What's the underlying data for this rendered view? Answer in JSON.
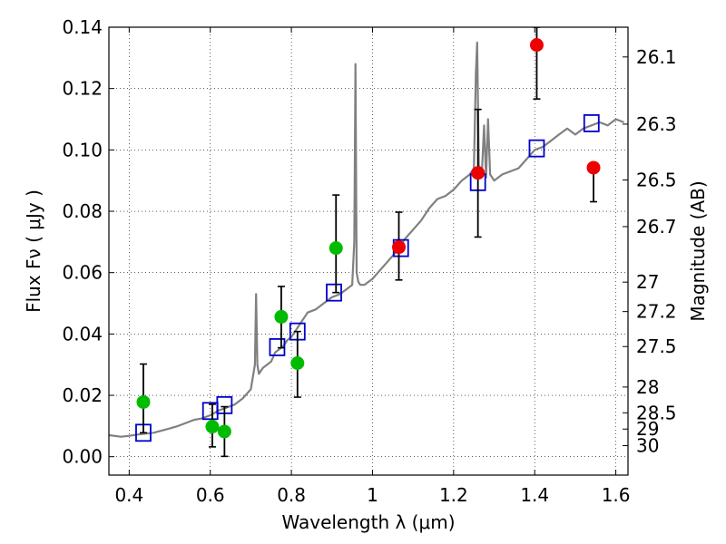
{
  "chart_data": {
    "type": "scatter",
    "title": "",
    "xlabel": "Wavelength  λ (μm)",
    "ylabel": "Flux  Fν  ( μJy )",
    "y2label": "Magnitude (AB)",
    "xlim": [
      0.35,
      1.63
    ],
    "ylim": [
      -0.006,
      0.14
    ],
    "grid": true,
    "grid_style": "dotted",
    "x_ticks": [
      {
        "value": 0.4,
        "label": "0.4"
      },
      {
        "value": 0.6,
        "label": "0.6"
      },
      {
        "value": 0.8,
        "label": "0.8"
      },
      {
        "value": 1.0,
        "label": "1"
      },
      {
        "value": 1.2,
        "label": "1.2"
      },
      {
        "value": 1.4,
        "label": "1.4"
      },
      {
        "value": 1.6,
        "label": "1.6"
      }
    ],
    "y_ticks": [
      {
        "value": 0.0,
        "label": "0.00"
      },
      {
        "value": 0.02,
        "label": "0.02"
      },
      {
        "value": 0.04,
        "label": "0.04"
      },
      {
        "value": 0.06,
        "label": "0.06"
      },
      {
        "value": 0.08,
        "label": "0.08"
      },
      {
        "value": 0.1,
        "label": "0.10"
      },
      {
        "value": 0.12,
        "label": "0.12"
      },
      {
        "value": 0.14,
        "label": "0.14"
      }
    ],
    "y2_ticks": [
      {
        "label": "26.1",
        "flux": 0.1303
      },
      {
        "label": "26.3",
        "flux": 0.1084
      },
      {
        "label": "26.5",
        "flux": 0.0902
      },
      {
        "label": "26.7",
        "flux": 0.075
      },
      {
        "label": "27",
        "flux": 0.0569
      },
      {
        "label": "27.2",
        "flux": 0.0473
      },
      {
        "label": "27.5",
        "flux": 0.0359
      },
      {
        "label": "28",
        "flux": 0.0227
      },
      {
        "label": "28.5",
        "flux": 0.0143
      },
      {
        "label": "29",
        "flux": 0.009
      },
      {
        "label": "30",
        "flux": 0.0036
      }
    ],
    "series": [
      {
        "type": "line",
        "color": "#808080",
        "x": [
          0.35,
          0.38,
          0.4,
          0.42,
          0.44,
          0.46,
          0.48,
          0.5,
          0.52,
          0.54,
          0.56,
          0.58,
          0.6,
          0.62,
          0.64,
          0.66,
          0.68,
          0.7,
          0.71,
          0.713,
          0.716,
          0.72,
          0.73,
          0.74,
          0.75,
          0.76,
          0.77,
          0.78,
          0.79,
          0.8,
          0.82,
          0.84,
          0.86,
          0.88,
          0.9,
          0.92,
          0.94,
          0.95,
          0.955,
          0.958,
          0.961,
          0.965,
          0.97,
          0.98,
          1.0,
          1.02,
          1.04,
          1.06,
          1.08,
          1.1,
          1.12,
          1.14,
          1.16,
          1.18,
          1.2,
          1.22,
          1.24,
          1.25,
          1.255,
          1.258,
          1.262,
          1.27,
          1.275,
          1.28,
          1.285,
          1.29,
          1.3,
          1.32,
          1.34,
          1.36,
          1.38,
          1.4,
          1.42,
          1.44,
          1.46,
          1.48,
          1.5,
          1.52,
          1.54,
          1.56,
          1.58,
          1.6,
          1.62
        ],
        "y": [
          0.007,
          0.0065,
          0.0068,
          0.0072,
          0.0075,
          0.0078,
          0.0085,
          0.0092,
          0.01,
          0.011,
          0.012,
          0.0125,
          0.0135,
          0.015,
          0.016,
          0.017,
          0.019,
          0.022,
          0.03,
          0.053,
          0.03,
          0.027,
          0.029,
          0.03,
          0.031,
          0.034,
          0.035,
          0.036,
          0.038,
          0.039,
          0.043,
          0.047,
          0.048,
          0.05,
          0.052,
          0.053,
          0.055,
          0.056,
          0.07,
          0.128,
          0.06,
          0.057,
          0.056,
          0.056,
          0.058,
          0.061,
          0.064,
          0.067,
          0.071,
          0.074,
          0.077,
          0.081,
          0.084,
          0.085,
          0.087,
          0.09,
          0.092,
          0.094,
          0.125,
          0.135,
          0.095,
          0.093,
          0.108,
          0.091,
          0.11,
          0.092,
          0.09,
          0.092,
          0.093,
          0.094,
          0.097,
          0.1,
          0.101,
          0.103,
          0.105,
          0.107,
          0.105,
          0.107,
          0.108,
          0.109,
          0.108,
          0.11,
          0.109
        ]
      },
      {
        "type": "scatter",
        "marker": "square",
        "color": "#0000cc",
        "x": [
          0.435,
          0.6,
          0.635,
          0.765,
          0.815,
          0.905,
          1.07,
          1.26,
          1.405,
          1.54
        ],
        "y": [
          0.0078,
          0.0149,
          0.0168,
          0.0357,
          0.0408,
          0.0535,
          0.068,
          0.0895,
          0.1005,
          0.1087
        ]
      },
      {
        "type": "scatter",
        "marker": "circle",
        "color": "#00bb00",
        "x": [
          0.435,
          0.605,
          0.635,
          0.775,
          0.815,
          0.91
        ],
        "y": [
          0.0178,
          0.0098,
          0.0082,
          0.0456,
          0.0305,
          0.068
        ],
        "yerr_low": [
          0.0078,
          0.0032,
          0.0001,
          0.0355,
          0.0194,
          0.0535
        ],
        "yerr_high": [
          0.0302,
          0.0171,
          0.0163,
          0.0555,
          0.0408,
          0.0853
        ]
      },
      {
        "type": "scatter",
        "marker": "circle",
        "color": "#ee0000",
        "x": [
          1.065,
          1.26,
          1.405,
          1.545
        ],
        "y": [
          0.0683,
          0.0925,
          0.1342,
          0.0942
        ],
        "yerr_low": [
          0.0576,
          0.0716,
          0.1166,
          0.0831
        ],
        "yerr_high": [
          0.0797,
          0.1132,
          0.14,
          0.0942
        ]
      }
    ]
  }
}
